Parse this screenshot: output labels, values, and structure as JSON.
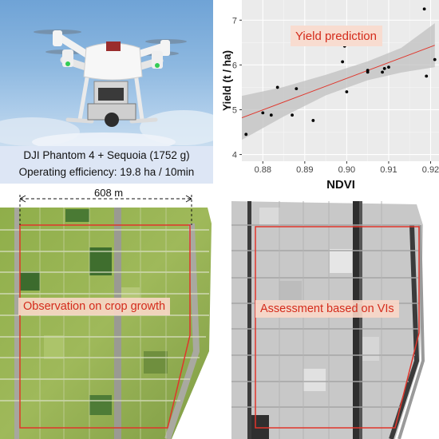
{
  "drone": {
    "caption_line1": "DJI Phantom 4 + Sequoia (1752 g)",
    "caption_line2": "Operating efficiency: 19.8 ha / 10min"
  },
  "rgb_map": {
    "distance_label": "608 m",
    "label": "Observation on crop growth"
  },
  "vi_map": {
    "label": "Assessment based on VIs"
  },
  "chart_data": {
    "type": "scatter",
    "title": "Yield prediction",
    "xlabel": "NDVI",
    "ylabel": "Yield (t / ha)",
    "xlim": [
      0.875,
      0.922
    ],
    "ylim": [
      3.85,
      7.45
    ],
    "x_ticks": [
      0.88,
      0.89,
      0.9,
      0.91,
      0.92
    ],
    "x_tick_labels": [
      "0.88",
      "0.89",
      "0.90",
      "0.91",
      "0.92"
    ],
    "y_ticks": [
      4,
      5,
      6,
      7
    ],
    "y_tick_labels": [
      "4",
      "5",
      "6",
      "7"
    ],
    "grid": true,
    "points": [
      {
        "x": 0.876,
        "y": 4.45
      },
      {
        "x": 0.88,
        "y": 4.93
      },
      {
        "x": 0.882,
        "y": 4.88
      },
      {
        "x": 0.8835,
        "y": 5.5
      },
      {
        "x": 0.887,
        "y": 4.88
      },
      {
        "x": 0.888,
        "y": 5.47
      },
      {
        "x": 0.892,
        "y": 4.76
      },
      {
        "x": 0.899,
        "y": 6.07
      },
      {
        "x": 0.8995,
        "y": 6.42
      },
      {
        "x": 0.9,
        "y": 5.4
      },
      {
        "x": 0.905,
        "y": 5.84
      },
      {
        "x": 0.905,
        "y": 5.88
      },
      {
        "x": 0.9085,
        "y": 5.84
      },
      {
        "x": 0.909,
        "y": 5.92
      },
      {
        "x": 0.91,
        "y": 5.95
      },
      {
        "x": 0.9185,
        "y": 7.25
      },
      {
        "x": 0.919,
        "y": 5.75
      },
      {
        "x": 0.921,
        "y": 6.12
      }
    ],
    "fit_line": {
      "x": [
        0.875,
        0.921
      ],
      "y": [
        4.82,
        6.44
      ]
    },
    "confidence_band": {
      "x": [
        0.875,
        0.885,
        0.895,
        0.905,
        0.913,
        0.921
      ],
      "lower": [
        4.33,
        4.85,
        5.32,
        5.66,
        5.83,
        5.95
      ],
      "upper": [
        5.31,
        5.51,
        5.78,
        6.08,
        6.38,
        6.93
      ]
    },
    "colors": {
      "panel": "#ebebeb",
      "grid": "#ffffff",
      "band": "#c0c0c0",
      "line": "#e0352b",
      "point": "#000000"
    }
  }
}
